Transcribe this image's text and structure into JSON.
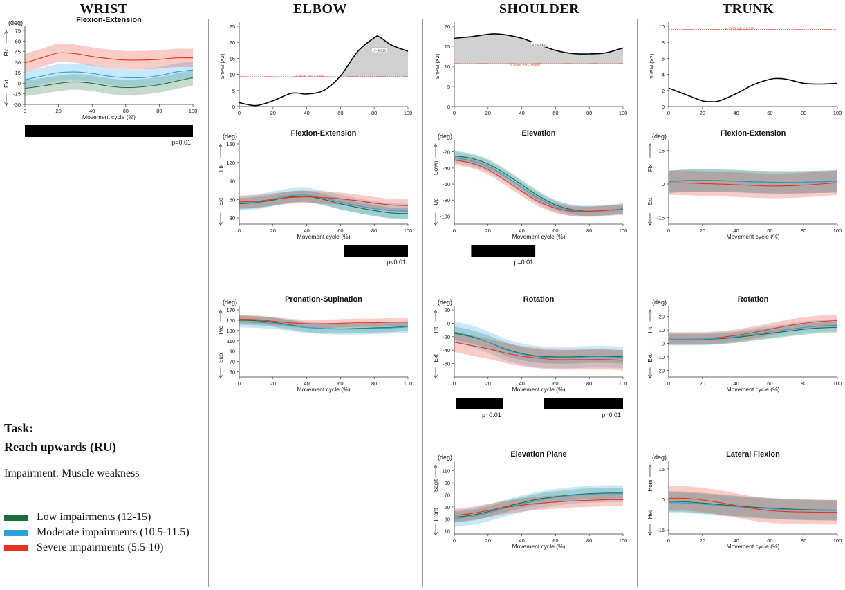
{
  "columns": [
    "WRIST",
    "ELBOW",
    "SHOULDER",
    "TRUNK"
  ],
  "task": {
    "label": "Task:",
    "name": "Reach upwards (RU)",
    "impairment": "Impairment: Muscle weakness"
  },
  "legend": [
    {
      "label": "Low impairments (12-15)",
      "color": "#1a6e3a"
    },
    {
      "label": "Moderate impairments (10.5-11.5)",
      "color": "#29a3df"
    },
    {
      "label": "Severe impairments (5.5-10)",
      "color": "#e8321f"
    }
  ],
  "chart_data": [
    {
      "id": "wrist-fe",
      "type": "line",
      "title": "Flexion-Extension",
      "unit": "(deg)",
      "xlabel": "Movement cycle (%)",
      "ylim": [
        -30,
        75
      ],
      "yticks": [
        -30,
        -15,
        0,
        15,
        30,
        45,
        60,
        75
      ],
      "xticks": [
        0,
        20,
        40,
        60,
        80,
        100
      ],
      "dir_top": "Flx",
      "dir_bottom": "Ext",
      "x": [
        0,
        10,
        20,
        30,
        40,
        50,
        60,
        70,
        80,
        90,
        100
      ],
      "series": [
        {
          "name": "Low impairments (12-15)",
          "values": [
            -7,
            -4,
            0,
            2,
            0,
            -4,
            -6,
            -5,
            -2,
            3,
            8
          ],
          "sd": 11
        },
        {
          "name": "Moderate impairments (10.5-11.5)",
          "values": [
            5,
            10,
            15,
            16,
            14,
            10,
            8,
            8,
            11,
            16,
            19
          ],
          "sd": 12
        },
        {
          "name": "Severe impairments (5.5-10)",
          "values": [
            29,
            36,
            43,
            42,
            38,
            35,
            33,
            33,
            34,
            36,
            36
          ],
          "sd": 13
        }
      ],
      "sig": [
        {
          "range": [
            0,
            100
          ],
          "label": "p=0.01"
        }
      ]
    },
    {
      "id": "elbow-spm",
      "type": "line",
      "title": "",
      "ylabel": "SnPM {X2}",
      "ylim": [
        0,
        25
      ],
      "yticks": [
        0,
        5,
        10,
        15,
        20,
        25
      ],
      "xticks": [
        0,
        20,
        40,
        60,
        80,
        100
      ],
      "x": [
        0,
        10,
        20,
        30,
        35,
        40,
        50,
        60,
        70,
        80,
        83,
        90,
        100
      ],
      "values": [
        1.2,
        0.3,
        1.8,
        4.0,
        4.2,
        3.9,
        5.0,
        9.5,
        17.0,
        21.4,
        21.7,
        19.2,
        17.2
      ],
      "threshold": 9.3,
      "threshold_label": "α =0.05,   X2* = 9.262",
      "cluster_label": "p = 0.010"
    },
    {
      "id": "shoulder-spm",
      "type": "line",
      "title": "",
      "ylabel": "SnPM {X2}",
      "ylim": [
        0,
        20
      ],
      "yticks": [
        0,
        5,
        10,
        15,
        20
      ],
      "xticks": [
        0,
        20,
        40,
        60,
        80,
        100
      ],
      "x": [
        0,
        10,
        20,
        25,
        30,
        40,
        50,
        60,
        70,
        80,
        90,
        100
      ],
      "values": [
        17.0,
        17.4,
        18.0,
        18.1,
        17.9,
        17.0,
        15.5,
        14.0,
        13.2,
        13.1,
        13.4,
        14.6
      ],
      "threshold": 10.7,
      "threshold_label": "α =0.05,   X2* = 10.675",
      "cluster_label": "p = 0.010"
    },
    {
      "id": "trunk-spm",
      "type": "line",
      "title": "",
      "ylabel": "SnPM {X2}",
      "ylim": [
        0,
        10
      ],
      "yticks": [
        0,
        2,
        4,
        6,
        8,
        10
      ],
      "xticks": [
        0,
        20,
        40,
        60,
        80,
        100
      ],
      "x": [
        0,
        10,
        20,
        25,
        30,
        40,
        50,
        60,
        65,
        70,
        80,
        90,
        100
      ],
      "values": [
        2.3,
        1.5,
        0.7,
        0.6,
        0.7,
        1.6,
        2.7,
        3.4,
        3.5,
        3.4,
        2.9,
        2.8,
        2.9
      ],
      "threshold": 9.6,
      "threshold_label": "α =0.05,   X2* = 9.517"
    },
    {
      "id": "elbow-fe",
      "type": "line",
      "title": "Flexion-Extension",
      "unit": "(deg)",
      "xlabel": "Movement cycle (%)",
      "ylim": [
        20,
        150
      ],
      "yticks": [
        30,
        60,
        90,
        120,
        150
      ],
      "xticks": [
        0,
        20,
        40,
        60,
        80,
        100
      ],
      "dir_top": "Flx",
      "dir_bottom": "Ext",
      "x": [
        0,
        10,
        20,
        30,
        40,
        50,
        60,
        70,
        80,
        90,
        100
      ],
      "series": [
        {
          "name": "Low impairments (12-15)",
          "values": [
            53,
            55,
            59,
            64,
            65,
            60,
            53,
            47,
            42,
            38,
            37
          ],
          "sd": 9
        },
        {
          "name": "Moderate impairments (10.5-11.5)",
          "values": [
            54,
            56,
            61,
            66,
            67,
            62,
            56,
            50,
            45,
            42,
            41
          ],
          "sd": 12
        },
        {
          "name": "Severe impairments (5.5-10)",
          "values": [
            56,
            57,
            60,
            63,
            64,
            63,
            61,
            58,
            54,
            51,
            50
          ],
          "sd": 10
        }
      ],
      "sig": [
        {
          "range": [
            62,
            100
          ],
          "label": "p<0.01"
        }
      ]
    },
    {
      "id": "elbow-ps",
      "type": "line",
      "title": "Pronation-Supination",
      "unit": "(deg)",
      "xlabel": "Movement cycle (%)",
      "ylim": [
        40,
        170
      ],
      "yticks": [
        50,
        70,
        90,
        110,
        130,
        150,
        170
      ],
      "xticks": [
        0,
        20,
        40,
        60,
        80,
        100
      ],
      "dir_top": "Pro",
      "dir_bottom": "Sup",
      "x": [
        0,
        10,
        20,
        30,
        40,
        50,
        60,
        70,
        80,
        90,
        100
      ],
      "series": [
        {
          "name": "Low impairments (12-15)",
          "values": [
            150,
            149,
            146,
            141,
            136,
            134,
            133,
            134,
            135,
            136,
            138
          ],
          "sd": 9
        },
        {
          "name": "Moderate impairments (10.5-11.5)",
          "values": [
            147,
            146,
            144,
            140,
            136,
            134,
            133,
            133,
            134,
            135,
            137
          ],
          "sd": 11
        },
        {
          "name": "Severe impairments (5.5-10)",
          "values": [
            152,
            151,
            148,
            145,
            143,
            143,
            144,
            145,
            145,
            146,
            146
          ],
          "sd": 8
        }
      ]
    },
    {
      "id": "shoulder-elev",
      "type": "line",
      "title": "Elevation",
      "unit": "(deg)",
      "xlabel": "Movement cycle (%)",
      "ylim": [
        -110,
        -10
      ],
      "yticks": [
        -20,
        -40,
        -60,
        -80,
        -100
      ],
      "xticks": [
        0,
        20,
        40,
        60,
        80,
        100
      ],
      "dir_top": "Down",
      "dir_bottom": "Up",
      "x": [
        0,
        10,
        20,
        30,
        40,
        50,
        60,
        70,
        80,
        90,
        100
      ],
      "series": [
        {
          "name": "Low impairments (12-15)",
          "values": [
            -25,
            -28,
            -35,
            -47,
            -61,
            -75,
            -86,
            -92,
            -94,
            -93,
            -91
          ],
          "sd": 6
        },
        {
          "name": "Moderate impairments (10.5-11.5)",
          "values": [
            -27,
            -31,
            -38,
            -50,
            -64,
            -78,
            -88,
            -93,
            -94,
            -93,
            -91
          ],
          "sd": 7
        },
        {
          "name": "Severe impairments (5.5-10)",
          "values": [
            -30,
            -34,
            -42,
            -55,
            -69,
            -82,
            -90,
            -94,
            -94,
            -93,
            -92
          ],
          "sd": 6
        }
      ],
      "sig": [
        {
          "range": [
            10,
            48
          ],
          "label": "p=0.01"
        }
      ]
    },
    {
      "id": "shoulder-rot",
      "type": "line",
      "title": "Rotation",
      "unit": "(deg)",
      "xlabel": "Movement cycle (%)",
      "ylim": [
        -80,
        20
      ],
      "yticks": [
        20,
        0,
        -20,
        -40,
        -60
      ],
      "xticks": [
        0,
        20,
        40,
        60,
        80,
        100
      ],
      "dir_top": "Int",
      "dir_bottom": "Ext",
      "x": [
        0,
        10,
        20,
        30,
        40,
        50,
        60,
        70,
        80,
        90,
        100
      ],
      "series": [
        {
          "name": "Low impairments (12-15)",
          "values": [
            -15,
            -20,
            -28,
            -38,
            -45,
            -49,
            -50,
            -50,
            -49,
            -49,
            -50
          ],
          "sd": 10
        },
        {
          "name": "Moderate impairments (10.5-11.5)",
          "values": [
            -13,
            -19,
            -28,
            -39,
            -46,
            -50,
            -51,
            -51,
            -50,
            -50,
            -51
          ],
          "sd": 16
        },
        {
          "name": "Severe impairments (5.5-10)",
          "values": [
            -28,
            -33,
            -38,
            -44,
            -49,
            -52,
            -54,
            -54,
            -54,
            -54,
            -55
          ],
          "sd": 15
        }
      ],
      "sig": [
        {
          "range": [
            1,
            29
          ],
          "label": "p=0.01"
        },
        {
          "range": [
            53,
            100
          ],
          "label": "p=0.01"
        }
      ]
    },
    {
      "id": "shoulder-ep",
      "type": "line",
      "title": "Elevation Plane",
      "unit": "(deg)",
      "xlabel": "Movement cycle (%)",
      "ylim": [
        5,
        120
      ],
      "yticks": [
        10,
        30,
        50,
        70,
        90,
        110
      ],
      "xticks": [
        0,
        20,
        40,
        60,
        80,
        100
      ],
      "dir_top": "Sagit",
      "dir_bottom": "Front",
      "x": [
        0,
        10,
        20,
        30,
        40,
        50,
        60,
        70,
        80,
        90,
        100
      ],
      "series": [
        {
          "name": "Low impairments (12-15)",
          "values": [
            33,
            36,
            42,
            50,
            57,
            63,
            67,
            70,
            72,
            73,
            73
          ],
          "sd": 9
        },
        {
          "name": "Moderate impairments (10.5-11.5)",
          "values": [
            31,
            34,
            40,
            48,
            55,
            61,
            66,
            69,
            71,
            72,
            72
          ],
          "sd": 14
        },
        {
          "name": "Severe impairments (5.5-10)",
          "values": [
            36,
            39,
            44,
            49,
            53,
            56,
            58,
            60,
            61,
            62,
            62
          ],
          "sd": 11
        }
      ]
    },
    {
      "id": "trunk-fe",
      "type": "line",
      "title": "Flexion-Extension",
      "unit": "(deg)",
      "xlabel": "Movement cycle (%)",
      "ylim": [
        -18,
        18
      ],
      "yticks": [
        15,
        0,
        -15
      ],
      "xticks": [
        0,
        20,
        40,
        60,
        80,
        100
      ],
      "dir_top": "Flx",
      "dir_bottom": "Ext",
      "x": [
        0,
        10,
        20,
        30,
        40,
        50,
        60,
        70,
        80,
        90,
        100
      ],
      "series": [
        {
          "name": "Low impairments (12-15)",
          "values": [
            1,
            1.5,
            1.6,
            1.5,
            1.3,
            1,
            0.8,
            0.7,
            0.8,
            1,
            1.2
          ],
          "sd": 5
        },
        {
          "name": "Moderate impairments (10.5-11.5)",
          "values": [
            1,
            1.4,
            1.5,
            1.4,
            1.2,
            0.9,
            0.7,
            0.7,
            0.8,
            1,
            1.1
          ],
          "sd": 5
        },
        {
          "name": "Severe impairments (5.5-10)",
          "values": [
            0.5,
            0.5,
            0.2,
            0,
            -0.3,
            -0.6,
            -0.9,
            -0.8,
            -0.5,
            0,
            0.6
          ],
          "sd": 5.5
        }
      ]
    },
    {
      "id": "trunk-rot",
      "type": "line",
      "title": "Rotation",
      "unit": "(deg)",
      "xlabel": "Movement cycle (%)",
      "ylim": [
        -25,
        25
      ],
      "yticks": [
        20,
        10,
        0,
        -10,
        -20
      ],
      "xticks": [
        0,
        20,
        40,
        60,
        80,
        100
      ],
      "dir_top": "Int",
      "dir_bottom": "Ext",
      "x": [
        0,
        10,
        20,
        30,
        40,
        50,
        60,
        70,
        80,
        90,
        100
      ],
      "series": [
        {
          "name": "Low impairments (12-15)",
          "values": [
            3,
            3,
            3,
            3.5,
            4.5,
            6,
            7.5,
            9,
            10.5,
            11.5,
            12
          ],
          "sd": 4
        },
        {
          "name": "Moderate impairments (10.5-11.5)",
          "values": [
            3,
            3,
            3.2,
            3.8,
            5,
            6.8,
            8.5,
            10.2,
            11.8,
            13,
            13.5
          ],
          "sd": 4.5
        },
        {
          "name": "Severe impairments (5.5-10)",
          "values": [
            4,
            4,
            4,
            4.5,
            6,
            8,
            10.5,
            13,
            15,
            16.3,
            17
          ],
          "sd": 4.5
        }
      ]
    },
    {
      "id": "trunk-lat",
      "type": "line",
      "title": "Lateral Flexion",
      "unit": "(deg)",
      "xlabel": "Movement cycle (%)",
      "ylim": [
        -17,
        17
      ],
      "yticks": [
        15,
        0,
        -15
      ],
      "xticks": [
        0,
        20,
        40,
        60,
        80,
        100
      ],
      "dir_top": "Hom",
      "dir_bottom": "Het",
      "x": [
        0,
        10,
        20,
        30,
        40,
        50,
        60,
        70,
        80,
        90,
        100
      ],
      "series": [
        {
          "name": "Low impairments (12-15)",
          "values": [
            -1,
            -1.2,
            -1.8,
            -2.5,
            -3.2,
            -3.8,
            -4.3,
            -4.7,
            -5,
            -5.2,
            -5.3
          ],
          "sd": 5
        },
        {
          "name": "Moderate impairments (10.5-11.5)",
          "values": [
            -1.5,
            -1.8,
            -2.3,
            -3,
            -3.6,
            -4.2,
            -4.6,
            -5,
            -5.2,
            -5.4,
            -5.5
          ],
          "sd": 5
        },
        {
          "name": "Severe impairments (5.5-10)",
          "values": [
            0.5,
            0.5,
            -0.3,
            -1.5,
            -3,
            -4.5,
            -5.5,
            -6,
            -6.2,
            -6.3,
            -6.3
          ],
          "sd": 6
        }
      ]
    }
  ]
}
